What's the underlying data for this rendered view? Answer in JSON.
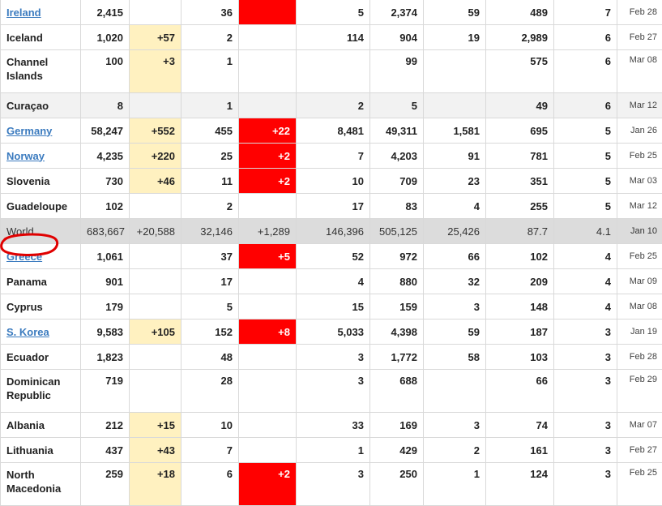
{
  "rows": [
    {
      "country": "Ireland",
      "link": true,
      "total": "2,415",
      "new_cases": "",
      "deaths": "36",
      "new_deaths": "",
      "new_deaths_red": true,
      "total_recovered": "5",
      "active": "2,374",
      "serious": "59",
      "per_million": "489",
      "tests": "7",
      "first_case": "Feb 28",
      "style": ""
    },
    {
      "country": "Iceland",
      "link": false,
      "total": "1,020",
      "new_cases": "+57",
      "deaths": "2",
      "new_deaths": "",
      "total_recovered": "114",
      "active": "904",
      "serious": "19",
      "per_million": "2,989",
      "tests": "6",
      "first_case": "Feb 27",
      "style": ""
    },
    {
      "country": "Channel Islands",
      "link": false,
      "total": "100",
      "new_cases": "+3",
      "deaths": "1",
      "new_deaths": "",
      "total_recovered": "",
      "active": "99",
      "serious": "",
      "per_million": "575",
      "tests": "6",
      "first_case": "Mar 08",
      "style": "tall"
    },
    {
      "country": "Curaçao",
      "link": false,
      "total": "8",
      "new_cases": "",
      "deaths": "1",
      "new_deaths": "",
      "total_recovered": "2",
      "active": "5",
      "serious": "",
      "per_million": "49",
      "tests": "6",
      "first_case": "Mar 12",
      "style": "shaded"
    },
    {
      "country": "Germany",
      "link": true,
      "total": "58,247",
      "new_cases": "+552",
      "deaths": "455",
      "new_deaths": "+22",
      "total_recovered": "8,481",
      "active": "49,311",
      "serious": "1,581",
      "per_million": "695",
      "tests": "5",
      "first_case": "Jan 26",
      "style": ""
    },
    {
      "country": "Norway",
      "link": true,
      "total": "4,235",
      "new_cases": "+220",
      "deaths": "25",
      "new_deaths": "+2",
      "total_recovered": "7",
      "active": "4,203",
      "serious": "91",
      "per_million": "781",
      "tests": "5",
      "first_case": "Feb 25",
      "style": ""
    },
    {
      "country": "Slovenia",
      "link": false,
      "total": "730",
      "new_cases": "+46",
      "deaths": "11",
      "new_deaths": "+2",
      "total_recovered": "10",
      "active": "709",
      "serious": "23",
      "per_million": "351",
      "tests": "5",
      "first_case": "Mar 03",
      "style": ""
    },
    {
      "country": "Guadeloupe",
      "link": false,
      "total": "102",
      "new_cases": "",
      "deaths": "2",
      "new_deaths": "",
      "total_recovered": "17",
      "active": "83",
      "serious": "4",
      "per_million": "255",
      "tests": "5",
      "first_case": "Mar 12",
      "style": ""
    },
    {
      "country": "World",
      "link": false,
      "total": "683,667",
      "new_cases": "+20,588",
      "deaths": "32,146",
      "new_deaths": "+1,289",
      "total_recovered": "146,396",
      "active": "505,125",
      "serious": "25,426",
      "per_million": "87.7",
      "tests": "4.1",
      "first_case": "Jan 10",
      "style": "world"
    },
    {
      "country": "Greece",
      "link": true,
      "total": "1,061",
      "new_cases": "",
      "deaths": "37",
      "new_deaths": "+5",
      "total_recovered": "52",
      "active": "972",
      "serious": "66",
      "per_million": "102",
      "tests": "4",
      "first_case": "Feb 25",
      "style": ""
    },
    {
      "country": "Panama",
      "link": false,
      "total": "901",
      "new_cases": "",
      "deaths": "17",
      "new_deaths": "",
      "total_recovered": "4",
      "active": "880",
      "serious": "32",
      "per_million": "209",
      "tests": "4",
      "first_case": "Mar 09",
      "style": ""
    },
    {
      "country": "Cyprus",
      "link": false,
      "total": "179",
      "new_cases": "",
      "deaths": "5",
      "new_deaths": "",
      "total_recovered": "15",
      "active": "159",
      "serious": "3",
      "per_million": "148",
      "tests": "4",
      "first_case": "Mar 08",
      "style": ""
    },
    {
      "country": "S. Korea",
      "link": true,
      "total": "9,583",
      "new_cases": "+105",
      "deaths": "152",
      "new_deaths": "+8",
      "total_recovered": "5,033",
      "active": "4,398",
      "serious": "59",
      "per_million": "187",
      "tests": "3",
      "first_case": "Jan 19",
      "style": ""
    },
    {
      "country": "Ecuador",
      "link": false,
      "total": "1,823",
      "new_cases": "",
      "deaths": "48",
      "new_deaths": "",
      "total_recovered": "3",
      "active": "1,772",
      "serious": "58",
      "per_million": "103",
      "tests": "3",
      "first_case": "Feb 28",
      "style": ""
    },
    {
      "country": "Dominican Republic",
      "link": false,
      "total": "719",
      "new_cases": "",
      "deaths": "28",
      "new_deaths": "",
      "total_recovered": "3",
      "active": "688",
      "serious": "",
      "per_million": "66",
      "tests": "3",
      "first_case": "Feb 29",
      "style": "tall"
    },
    {
      "country": "Albania",
      "link": false,
      "total": "212",
      "new_cases": "+15",
      "deaths": "10",
      "new_deaths": "",
      "total_recovered": "33",
      "active": "169",
      "serious": "3",
      "per_million": "74",
      "tests": "3",
      "first_case": "Mar 07",
      "style": ""
    },
    {
      "country": "Lithuania",
      "link": false,
      "total": "437",
      "new_cases": "+43",
      "deaths": "7",
      "new_deaths": "",
      "total_recovered": "1",
      "active": "429",
      "serious": "2",
      "per_million": "161",
      "tests": "3",
      "first_case": "Feb 27",
      "style": ""
    },
    {
      "country": "North Macedonia",
      "link": false,
      "total": "259",
      "new_cases": "+18",
      "deaths": "6",
      "new_deaths": "+2",
      "total_recovered": "3",
      "active": "250",
      "serious": "1",
      "per_million": "124",
      "tests": "3",
      "first_case": "Feb 25",
      "style": "tall"
    }
  ],
  "colors": {
    "new_cases_bg": "#fff1c0",
    "new_deaths_bg": "#ff0000",
    "link": "#3b7bbf",
    "world_row_bg": "#dcdcdc",
    "highlight_circle": "#e00000"
  },
  "annotation": {
    "circled_country": "Greece"
  }
}
